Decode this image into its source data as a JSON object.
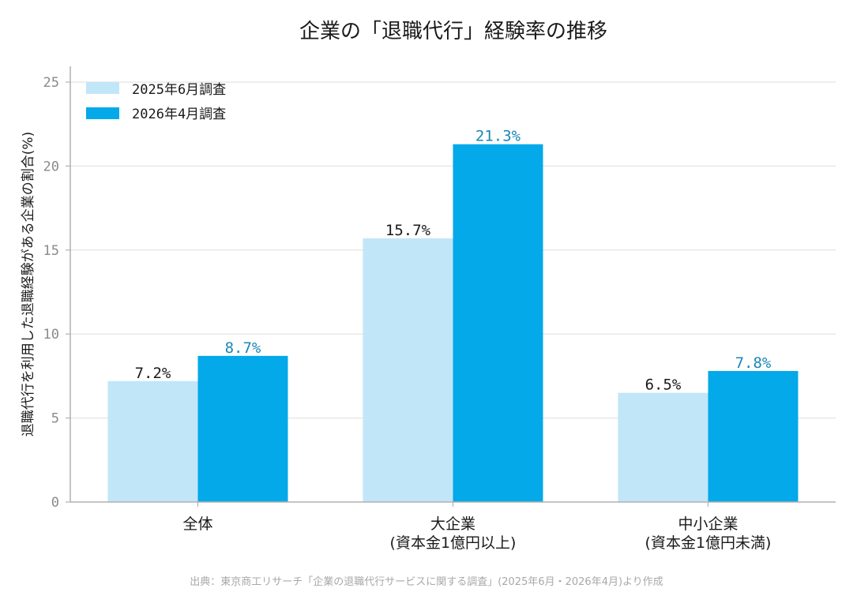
{
  "chart_data": {
    "type": "bar",
    "title": "企業の「退職代行」経験率の推移",
    "ylabel": "退職代行を利用した退職経験がある企業の割合(%)",
    "xlabel": "",
    "ylim": [
      0,
      25
    ],
    "yticks": [
      0,
      5,
      10,
      15,
      20,
      25
    ],
    "grid": true,
    "legend_position": "top-left",
    "categories": [
      [
        "全体"
      ],
      [
        "大企業",
        "(資本金1億円以上)"
      ],
      [
        "中小企業",
        "(資本金1億円未満)"
      ]
    ],
    "series": [
      {
        "name": "2025年6月調査",
        "values": [
          7.2,
          15.7,
          6.5
        ],
        "labels": [
          "7.2%",
          "15.7%",
          "6.5%"
        ],
        "color": "#c1e6f8",
        "label_color": "#1a1a1a"
      },
      {
        "name": "2026年4月調査",
        "values": [
          8.7,
          21.3,
          7.8
        ],
        "labels": [
          "8.7%",
          "21.3%",
          "7.8%"
        ],
        "color": "#03a9e8",
        "label_color": "#1b86b8"
      }
    ],
    "source": "出典：東京商工リサーチ「企業の退職代行サービスに関する調査」(2025年6月・2026年4月)より作成"
  },
  "colors": {
    "grid": "#e8e8e8",
    "axis": "#b0b0b0",
    "tick_text": "#8a8a8a"
  }
}
